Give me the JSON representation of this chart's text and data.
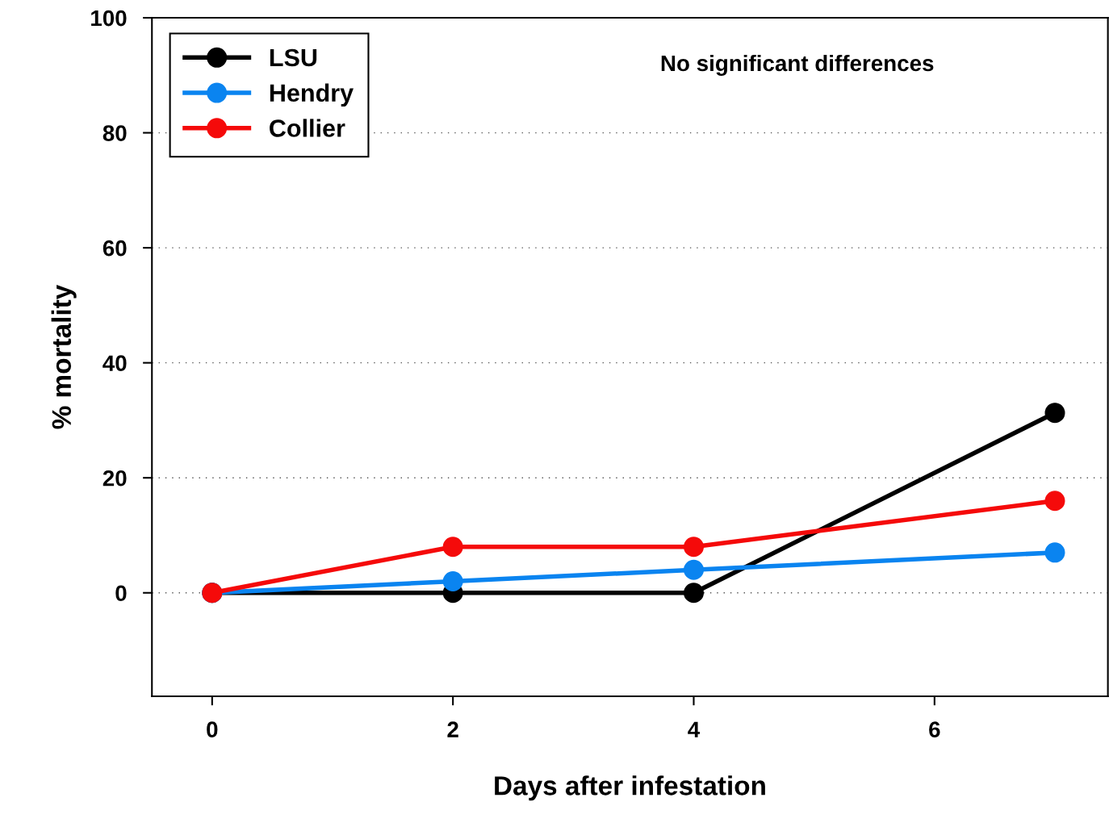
{
  "chart_data": {
    "type": "line",
    "xlabel": "Days after infestation",
    "ylabel": "% mortality",
    "x": [
      0,
      2,
      4,
      7
    ],
    "series": [
      {
        "name": "LSU",
        "color": "#000000",
        "values": [
          0,
          0,
          0,
          31.3
        ]
      },
      {
        "name": "Hendry",
        "color": "#0a84f0",
        "values": [
          0,
          2,
          4,
          7
        ]
      },
      {
        "name": "Collier",
        "color": "#f50a0a",
        "values": [
          0,
          8,
          8,
          16
        ]
      }
    ],
    "xlim": [
      -0.5,
      7.44
    ],
    "xticks": [
      0,
      2,
      4,
      6
    ],
    "ylim": [
      -18,
      100
    ],
    "yticks": [
      0,
      20,
      40,
      60,
      80,
      100
    ],
    "grid": "y",
    "legend": "top left",
    "marker": "circle",
    "line_style": "solid",
    "annotations": [
      "No significant differences"
    ]
  }
}
